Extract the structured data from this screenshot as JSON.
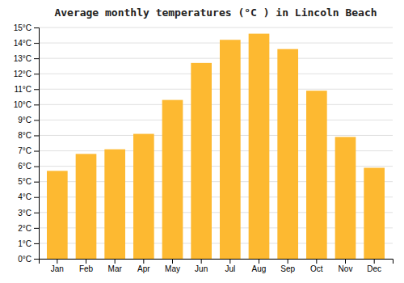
{
  "chart_data": {
    "type": "bar",
    "title": "Average monthly temperatures (°C ) in Lincoln Beach",
    "categories": [
      "Jan",
      "Feb",
      "Mar",
      "Apr",
      "May",
      "Jun",
      "Jul",
      "Aug",
      "Sep",
      "Oct",
      "Nov",
      "Dec"
    ],
    "values": [
      5.7,
      6.8,
      7.1,
      8.1,
      10.3,
      12.7,
      14.2,
      14.6,
      13.6,
      10.9,
      7.9,
      5.9
    ],
    "color": "#FDB931",
    "ylim": [
      0,
      15
    ],
    "yticks": [
      {
        "value": 0,
        "label": "0°C"
      },
      {
        "value": 1,
        "label": "1°C"
      },
      {
        "value": 2,
        "label": "2°C"
      },
      {
        "value": 3,
        "label": "3°C"
      },
      {
        "value": 4,
        "label": "4°C"
      },
      {
        "value": 5,
        "label": "5°C"
      },
      {
        "value": 6,
        "label": "6°C"
      },
      {
        "value": 7,
        "label": "7°C"
      },
      {
        "value": 8,
        "label": "8°C"
      },
      {
        "value": 9,
        "label": "9°C"
      },
      {
        "value": 10,
        "label": "10°C"
      },
      {
        "value": 11,
        "label": "11°C"
      },
      {
        "value": 12,
        "label": "12°C"
      },
      {
        "value": 13,
        "label": "13°C"
      },
      {
        "value": 14,
        "label": "14°C"
      },
      {
        "value": 15,
        "label": "15°C"
      }
    ],
    "grid": true
  }
}
